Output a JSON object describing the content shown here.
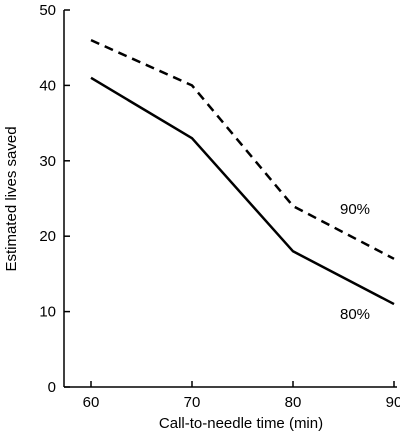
{
  "chart_data": {
    "type": "line",
    "title": "",
    "xlabel": "Call-to-needle time (min)",
    "ylabel": "Estimated lives saved",
    "xlim": [
      60,
      90
    ],
    "ylim": [
      0,
      50
    ],
    "x": [
      60,
      70,
      80,
      90
    ],
    "xticks": [
      "60",
      "70",
      "80",
      "90"
    ],
    "yticks": [
      "0",
      "10",
      "20",
      "30",
      "40",
      "50"
    ],
    "grid": false,
    "series": [
      {
        "name": "90%",
        "style": "dashed",
        "color": "#000000",
        "values": [
          46,
          40,
          24,
          17
        ]
      },
      {
        "name": "80%",
        "style": "solid",
        "color": "#000000",
        "values": [
          41,
          33,
          18,
          11
        ]
      }
    ]
  }
}
